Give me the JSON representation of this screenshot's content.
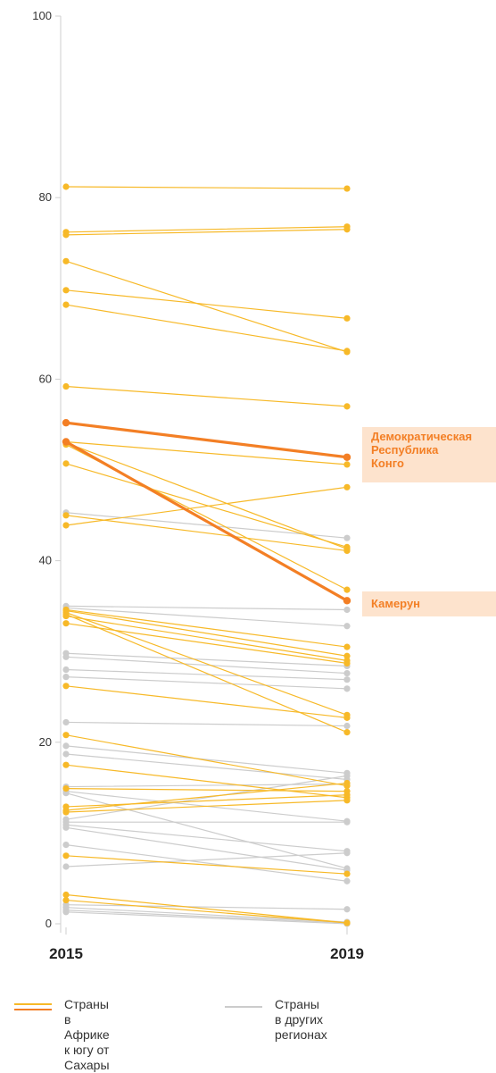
{
  "chart_data": {
    "type": "slope",
    "title": "",
    "xlabel": "",
    "ylabel": "",
    "x": [
      "2015",
      "2019"
    ],
    "ylim": [
      0,
      100
    ],
    "yticks": [
      0,
      20,
      40,
      60,
      80,
      100
    ],
    "grid": false,
    "legend_position": "bottom-left",
    "colors": {
      "ssa": "#f7b928",
      "other": "#cccccc",
      "highlight": "#f37f25",
      "callout_bg": "#fde3cd"
    },
    "series_groups": [
      {
        "name": "Страны в Африке\nк югу от Сахары",
        "key": "ssa"
      },
      {
        "name": "Страны в других\nрегионах",
        "key": "other"
      }
    ],
    "highlighted": [
      {
        "label": "Демократическая\nРеспублика\nКонго",
        "values": [
          55.2,
          51.4
        ]
      },
      {
        "label": "Камерун",
        "values": [
          53.1,
          35.6
        ]
      }
    ],
    "ssa_series": [
      [
        81.2,
        81.0
      ],
      [
        76.2,
        76.8
      ],
      [
        75.9,
        76.5
      ],
      [
        73.0,
        63.0
      ],
      [
        69.8,
        66.7
      ],
      [
        68.2,
        63.1
      ],
      [
        59.2,
        57.0
      ],
      [
        53.1,
        50.6
      ],
      [
        53.0,
        41.3
      ],
      [
        52.8,
        36.8
      ],
      [
        50.7,
        41.5
      ],
      [
        45.0,
        41.1
      ],
      [
        43.9,
        48.1
      ],
      [
        34.6,
        30.5
      ],
      [
        34.5,
        29.5
      ],
      [
        34.3,
        23.0
      ],
      [
        34.1,
        21.1
      ],
      [
        33.9,
        29.0
      ],
      [
        33.1,
        28.7
      ],
      [
        26.2,
        22.7
      ],
      [
        20.8,
        15.2
      ],
      [
        17.5,
        13.9
      ],
      [
        14.9,
        14.6
      ],
      [
        12.9,
        14.2
      ],
      [
        12.5,
        15.5
      ],
      [
        12.3,
        13.6
      ],
      [
        7.5,
        5.5
      ],
      [
        3.2,
        0.1
      ],
      [
        2.6,
        0.1
      ]
    ],
    "other_series": [
      [
        45.3,
        42.5
      ],
      [
        35.0,
        34.6
      ],
      [
        34.8,
        32.8
      ],
      [
        29.8,
        28.4
      ],
      [
        29.4,
        27.6
      ],
      [
        28.0,
        26.9
      ],
      [
        27.2,
        25.9
      ],
      [
        22.2,
        21.8
      ],
      [
        19.6,
        16.6
      ],
      [
        18.7,
        15.9
      ],
      [
        15.1,
        15.4
      ],
      [
        14.6,
        11.3
      ],
      [
        14.4,
        6.1
      ],
      [
        11.5,
        16.3
      ],
      [
        11.2,
        11.2
      ],
      [
        10.9,
        8.0
      ],
      [
        10.6,
        5.9
      ],
      [
        8.7,
        4.7
      ],
      [
        6.3,
        7.8
      ],
      [
        2.1,
        1.6
      ],
      [
        1.8,
        0.2
      ],
      [
        1.5,
        0.1
      ],
      [
        1.3,
        0.0
      ]
    ]
  }
}
